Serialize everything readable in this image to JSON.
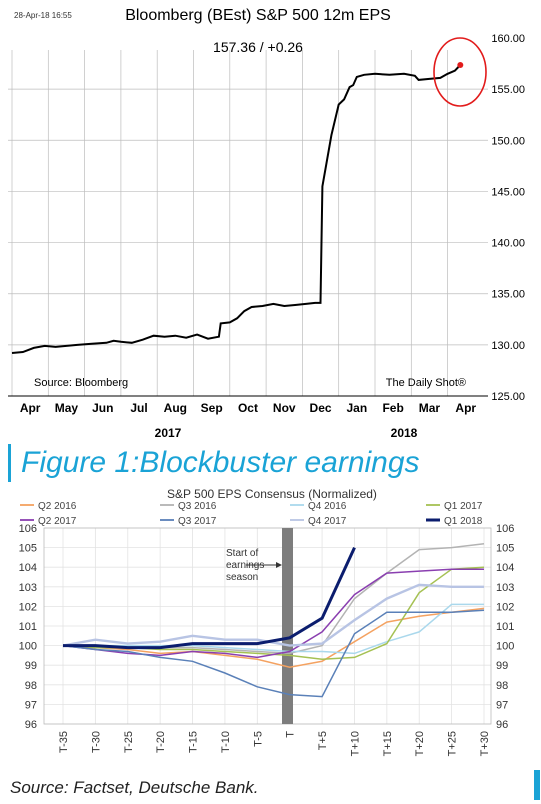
{
  "chart_data": [
    {
      "type": "line",
      "title": "Bloomberg (BEst) S&P 500 12m EPS",
      "date_stamp": "28-Apr-18 16:55",
      "subtitle": "157.36  /  +0.26",
      "source": "Source: Bloomberg",
      "credit": "The Daily Shot®",
      "ylim": [
        125,
        160
      ],
      "y_ticks": [
        "160.00",
        "155.00",
        "150.00",
        "145.00",
        "140.00",
        "135.00",
        "130.00",
        "125.00"
      ],
      "x_ticks": [
        "Apr",
        "May",
        "Jun",
        "Jul",
        "Aug",
        "Sep",
        "Oct",
        "Nov",
        "Dec",
        "Jan",
        "Feb",
        "Mar",
        "Apr"
      ],
      "year_labels": [
        "2017",
        "2018"
      ],
      "grid": true,
      "annotation": "red circle highlighting latest value",
      "x_unit": "months since Apr 1 2017",
      "series": [
        {
          "points": [
            [
              0.0,
              129.2
            ],
            [
              0.3,
              129.3
            ],
            [
              0.6,
              129.7
            ],
            [
              0.9,
              129.9
            ],
            [
              1.2,
              129.8
            ],
            [
              1.5,
              129.9
            ],
            [
              1.8,
              130.0
            ],
            [
              2.2,
              130.1
            ],
            [
              2.6,
              130.2
            ],
            [
              2.8,
              130.4
            ],
            [
              3.0,
              130.3
            ],
            [
              3.3,
              130.2
            ],
            [
              3.6,
              130.5
            ],
            [
              3.9,
              130.9
            ],
            [
              4.2,
              130.8
            ],
            [
              4.5,
              130.9
            ],
            [
              4.8,
              130.7
            ],
            [
              5.1,
              131.0
            ],
            [
              5.4,
              130.6
            ],
            [
              5.7,
              130.8
            ],
            [
              5.75,
              132.1
            ],
            [
              6.0,
              132.2
            ],
            [
              6.2,
              132.6
            ],
            [
              6.4,
              133.3
            ],
            [
              6.6,
              133.7
            ],
            [
              6.9,
              133.8
            ],
            [
              7.2,
              134.0
            ],
            [
              7.5,
              133.8
            ],
            [
              7.8,
              133.9
            ],
            [
              8.1,
              134.0
            ],
            [
              8.35,
              134.1
            ],
            [
              8.5,
              134.1
            ],
            [
              8.55,
              145.5
            ],
            [
              8.65,
              147.5
            ],
            [
              8.8,
              150.5
            ],
            [
              9.0,
              153.5
            ],
            [
              9.15,
              154.0
            ],
            [
              9.3,
              155.2
            ],
            [
              9.4,
              155.4
            ],
            [
              9.5,
              156.2
            ],
            [
              9.7,
              156.4
            ],
            [
              10.0,
              156.5
            ],
            [
              10.4,
              156.4
            ],
            [
              10.8,
              156.5
            ],
            [
              11.1,
              156.3
            ],
            [
              11.2,
              155.9
            ],
            [
              11.5,
              156.0
            ],
            [
              11.8,
              156.1
            ],
            [
              12.0,
              156.5
            ],
            [
              12.2,
              156.8
            ],
            [
              12.35,
              157.36
            ]
          ],
          "color": "#000000"
        }
      ]
    },
    {
      "type": "line",
      "title": "S&P 500 EPS Consensus (Normalized)",
      "annotation": "Start of earnings season",
      "ylim": [
        96,
        106
      ],
      "y_ticks": [
        "106",
        "105",
        "104",
        "103",
        "102",
        "101",
        "100",
        "99",
        "98",
        "97",
        "96"
      ],
      "x": [
        "T-35",
        "T-30",
        "T-25",
        "T-20",
        "T-15",
        "T-10",
        "T-5",
        "T",
        "T+5",
        "T+10",
        "T+15",
        "T+20",
        "T+25",
        "T+30"
      ],
      "grid": true,
      "legend_position": "top",
      "series": [
        {
          "name": "Q2 2016",
          "color": "#f4a261",
          "values": [
            100.0,
            99.9,
            99.8,
            99.6,
            99.7,
            99.5,
            99.3,
            98.9,
            99.2,
            100.2,
            101.2,
            101.5,
            101.7,
            101.9
          ]
        },
        {
          "name": "Q3 2016",
          "color": "#b3b3b3",
          "values": [
            100.0,
            99.9,
            99.9,
            99.9,
            99.9,
            99.8,
            99.7,
            99.6,
            100.0,
            102.4,
            103.7,
            104.9,
            105.0,
            105.2
          ]
        },
        {
          "name": "Q4 2016",
          "color": "#aad8ec",
          "values": [
            100.0,
            100.0,
            100.0,
            100.0,
            100.0,
            99.9,
            99.8,
            99.7,
            99.7,
            99.6,
            100.2,
            100.7,
            102.1,
            102.1
          ]
        },
        {
          "name": "Q1 2017",
          "color": "#a5c153",
          "values": [
            100.0,
            99.9,
            99.9,
            99.8,
            99.8,
            99.7,
            99.6,
            99.5,
            99.3,
            99.4,
            100.1,
            102.7,
            103.9,
            104.0
          ]
        },
        {
          "name": "Q2 2017",
          "color": "#8a3fb0",
          "values": [
            100.0,
            99.8,
            99.6,
            99.5,
            99.7,
            99.6,
            99.4,
            99.7,
            100.7,
            102.6,
            103.7,
            103.8,
            103.9,
            103.9
          ]
        },
        {
          "name": "Q3 2017",
          "color": "#5a80b8",
          "values": [
            100.0,
            99.8,
            99.7,
            99.4,
            99.2,
            98.6,
            97.9,
            97.5,
            97.4,
            100.6,
            101.7,
            101.7,
            101.7,
            101.8
          ]
        },
        {
          "name": "Q4 2017",
          "color": "#b8c4e4",
          "values": [
            100.0,
            100.3,
            100.1,
            100.2,
            100.5,
            100.3,
            100.3,
            100.0,
            100.1,
            101.3,
            102.4,
            103.1,
            103.0,
            103.0
          ]
        },
        {
          "name": "Q1 2018",
          "color": "#0b1d6e",
          "values": [
            100.0,
            100.0,
            99.9,
            99.9,
            100.1,
            100.1,
            100.1,
            100.4,
            101.4,
            105.0,
            null,
            null,
            null,
            null
          ]
        }
      ]
    }
  ],
  "figure_heading": "Figure 1:Blockbuster earnings",
  "footer": {
    "source": "Source: Factset, Deutsche Bank."
  }
}
